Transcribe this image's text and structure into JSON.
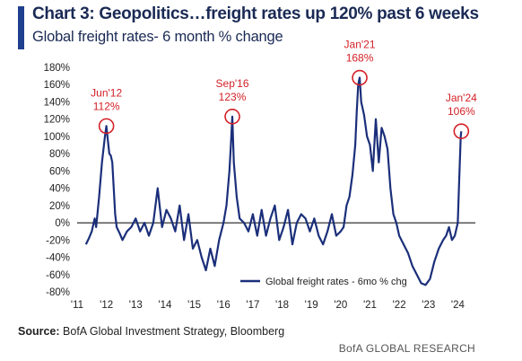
{
  "header": {
    "title": "Chart 3: Geopolitics…freight rates up 120% past 6 weeks",
    "subtitle": "Global freight rates- 6 month % change",
    "accent_color": "#1f3f8f"
  },
  "footer": {
    "source_label": "Source:",
    "source_text": "BofA Global Investment Strategy, Bloomberg",
    "brand": "BofA GLOBAL RESEARCH"
  },
  "chart_data": {
    "type": "line",
    "ylim": [
      -80,
      180
    ],
    "xlim": [
      2011,
      2024.6
    ],
    "yticks": [
      -80,
      -60,
      -40,
      -20,
      0,
      20,
      40,
      60,
      80,
      100,
      120,
      140,
      160,
      180
    ],
    "ytick_labels": [
      "-80%",
      "-60%",
      "-40%",
      "-20%",
      "0%",
      "20%",
      "40%",
      "60%",
      "80%",
      "100%",
      "120%",
      "140%",
      "160%",
      "180%"
    ],
    "xticks": [
      2011,
      2012,
      2013,
      2014,
      2015,
      2016,
      2017,
      2018,
      2019,
      2020,
      2021,
      2022,
      2023,
      2024
    ],
    "xtick_labels": [
      "'11",
      "'12",
      "'13",
      "'14",
      "'15",
      "'16",
      "'17",
      "'18",
      "'19",
      "'20",
      "'21",
      "'22",
      "'23",
      "'24"
    ],
    "grid": false,
    "legend_position": "bottom-right",
    "series_color": "#1b2f7a",
    "annotation_color": "#d32027",
    "series": [
      {
        "name": "Global freight rates - 6mo % chg",
        "x": [
          2011.3,
          2011.4,
          2011.5,
          2011.6,
          2011.65,
          2011.75,
          2011.85,
          2011.95,
          2012.0,
          2012.05,
          2012.1,
          2012.15,
          2012.2,
          2012.25,
          2012.3,
          2012.35,
          2012.45,
          2012.55,
          2012.7,
          2012.85,
          2013.0,
          2013.15,
          2013.3,
          2013.45,
          2013.6,
          2013.75,
          2013.9,
          2014.05,
          2014.2,
          2014.35,
          2014.5,
          2014.65,
          2014.8,
          2014.95,
          2015.1,
          2015.25,
          2015.4,
          2015.55,
          2015.7,
          2015.85,
          2016.0,
          2016.1,
          2016.2,
          2016.25,
          2016.3,
          2016.35,
          2016.45,
          2016.55,
          2016.7,
          2016.85,
          2017.0,
          2017.15,
          2017.3,
          2017.45,
          2017.6,
          2017.75,
          2017.9,
          2018.05,
          2018.2,
          2018.35,
          2018.5,
          2018.65,
          2018.8,
          2018.95,
          2019.1,
          2019.25,
          2019.4,
          2019.55,
          2019.7,
          2019.85,
          2020.0,
          2020.1,
          2020.2,
          2020.3,
          2020.4,
          2020.5,
          2020.55,
          2020.6,
          2020.65,
          2020.7,
          2020.8,
          2020.9,
          2021.0,
          2021.1,
          2021.2,
          2021.3,
          2021.4,
          2021.5,
          2021.6,
          2021.7,
          2021.8,
          2021.9,
          2022.0,
          2022.15,
          2022.3,
          2022.45,
          2022.6,
          2022.75,
          2022.9,
          2023.05,
          2023.2,
          2023.35,
          2023.5,
          2023.6,
          2023.7,
          2023.8,
          2023.9,
          2024.0,
          2024.05,
          2024.1,
          2024.12
        ],
        "values": [
          -25,
          -18,
          -10,
          5,
          -5,
          30,
          70,
          100,
          112,
          95,
          80,
          78,
          70,
          40,
          10,
          -5,
          -12,
          -20,
          -10,
          -5,
          5,
          -10,
          0,
          -15,
          0,
          40,
          -5,
          15,
          5,
          -10,
          20,
          -20,
          10,
          -30,
          -20,
          -40,
          -55,
          -30,
          -50,
          -20,
          0,
          20,
          60,
          90,
          123,
          70,
          30,
          5,
          0,
          -10,
          10,
          -15,
          15,
          -15,
          5,
          20,
          -20,
          -5,
          15,
          -25,
          0,
          10,
          5,
          -10,
          5,
          -15,
          -25,
          -10,
          10,
          -15,
          -10,
          -5,
          20,
          30,
          55,
          90,
          130,
          160,
          168,
          140,
          125,
          100,
          90,
          60,
          120,
          70,
          110,
          100,
          85,
          40,
          10,
          0,
          -15,
          -25,
          -35,
          -50,
          -60,
          -70,
          -72,
          -65,
          -45,
          -30,
          -20,
          -15,
          -5,
          -20,
          -15,
          0,
          50,
          100,
          106
        ]
      }
    ],
    "annotations": [
      {
        "label_top": "Jun'12",
        "label_bottom": "112%",
        "x": 2012.0,
        "y": 112
      },
      {
        "label_top": "Sep'16",
        "label_bottom": "123%",
        "x": 2016.3,
        "y": 123
      },
      {
        "label_top": "Jan'21",
        "label_bottom": "168%",
        "x": 2020.65,
        "y": 168
      },
      {
        "label_top": "Jan'24",
        "label_bottom": "106%",
        "x": 2024.12,
        "y": 106
      }
    ]
  }
}
